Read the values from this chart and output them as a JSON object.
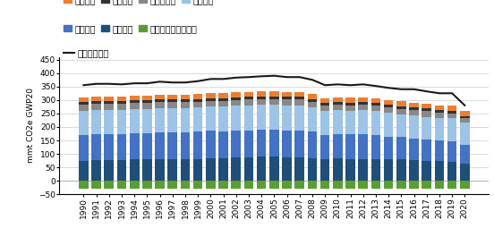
{
  "years": [
    1990,
    1991,
    1992,
    1993,
    1994,
    1995,
    1996,
    1997,
    1998,
    1999,
    2000,
    2001,
    2002,
    2003,
    2004,
    2005,
    2006,
    2007,
    2008,
    2009,
    2010,
    2011,
    2012,
    2013,
    2014,
    2015,
    2016,
    2017,
    2018,
    2019,
    2020
  ],
  "forest": [
    -28,
    -28,
    -28,
    -28,
    -28,
    -28,
    -28,
    -28,
    -28,
    -28,
    -28,
    -28,
    -28,
    -28,
    -28,
    -28,
    -28,
    -28,
    -28,
    -28,
    -28,
    -28,
    -28,
    -28,
    -28,
    -28,
    -28,
    -28,
    -28,
    -28,
    -28
  ],
  "transport": [
    75,
    77,
    77,
    77,
    80,
    80,
    80,
    80,
    80,
    82,
    85,
    85,
    87,
    88,
    90,
    90,
    88,
    88,
    85,
    80,
    83,
    82,
    82,
    82,
    80,
    80,
    78,
    75,
    75,
    72,
    65
  ],
  "electricity": [
    95,
    97,
    97,
    97,
    97,
    97,
    100,
    100,
    100,
    100,
    100,
    98,
    100,
    100,
    100,
    100,
    100,
    100,
    97,
    90,
    90,
    90,
    90,
    88,
    85,
    82,
    80,
    78,
    75,
    75,
    70
  ],
  "building": [
    90,
    90,
    90,
    90,
    90,
    90,
    90,
    90,
    90,
    90,
    90,
    92,
    92,
    92,
    92,
    92,
    92,
    92,
    90,
    88,
    90,
    88,
    90,
    88,
    87,
    85,
    85,
    85,
    83,
    85,
    80
  ],
  "waste": [
    22,
    22,
    22,
    22,
    22,
    22,
    22,
    22,
    22,
    22,
    22,
    22,
    22,
    22,
    22,
    22,
    22,
    22,
    22,
    20,
    20,
    20,
    20,
    20,
    20,
    20,
    20,
    20,
    20,
    18,
    18
  ],
  "industry": [
    10,
    10,
    10,
    10,
    10,
    10,
    10,
    10,
    10,
    10,
    10,
    10,
    10,
    10,
    10,
    10,
    10,
    10,
    10,
    10,
    10,
    10,
    10,
    10,
    10,
    10,
    10,
    10,
    10,
    10,
    8
  ],
  "agriculture": [
    18,
    18,
    18,
    18,
    18,
    18,
    18,
    18,
    18,
    18,
    18,
    18,
    18,
    18,
    18,
    18,
    18,
    18,
    18,
    18,
    18,
    18,
    18,
    18,
    18,
    18,
    18,
    18,
    18,
    18,
    18
  ],
  "net": [
    355,
    360,
    360,
    358,
    362,
    362,
    368,
    365,
    365,
    370,
    378,
    378,
    383,
    385,
    388,
    390,
    385,
    385,
    375,
    355,
    358,
    355,
    358,
    352,
    345,
    340,
    340,
    332,
    325,
    325,
    280
  ],
  "colors": {
    "forest": "#5a9e32",
    "transport": "#1f4e79",
    "electricity": "#4472c4",
    "building": "#9dc3e6",
    "waste": "#888888",
    "industry": "#333333",
    "agriculture": "#ed7d31"
  },
  "legend_labels": {
    "electricity": "電力部門",
    "transport": "輸送部門",
    "forest": "森林による炭素隔離",
    "net": "純排出量合計"
  },
  "ylabel": "mmt CO2e GWP20",
  "ylim": [
    -50,
    460
  ],
  "yticks": [
    -50,
    0,
    50,
    100,
    150,
    200,
    250,
    300,
    350,
    400,
    450
  ],
  "bg_color": "#ffffff",
  "line_color": "#1a1a1a"
}
